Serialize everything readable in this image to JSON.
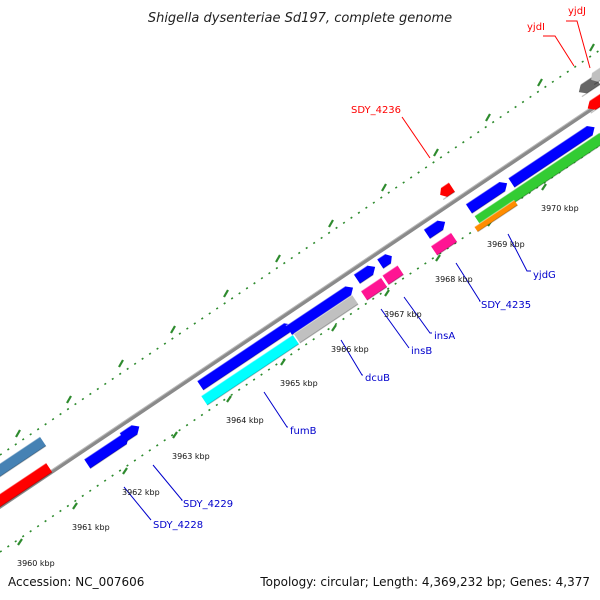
{
  "title": "Shigella dysenteriae Sd197, complete genome",
  "footer": {
    "accession": "Accession: NC_007606",
    "topology": "Topology: circular; Length: 4,369,232 bp; Genes: 4,377"
  },
  "colors": {
    "backbone": "#888888",
    "tick_mark": "#2e8b2e",
    "label_red": "#ff0000",
    "label_blue": "#0000cc",
    "gene_blue": "#0000ff",
    "gene_red": "#ff0000",
    "gene_pink": "#ff1493",
    "gene_cyan": "#00ffff",
    "gene_gray": "#c0c0c0",
    "gene_darkgray": "#666666",
    "gene_green": "#33cc33",
    "gene_orange": "#ff8c00",
    "gene_steel": "#4682b4"
  },
  "ticks": [
    {
      "label": "3960 kbp"
    },
    {
      "label": "3961 kbp"
    },
    {
      "label": "3962 kbp"
    },
    {
      "label": "3963 kbp"
    },
    {
      "label": "3964 kbp"
    },
    {
      "label": "3965 kbp"
    },
    {
      "label": "3966 kbp"
    },
    {
      "label": "3967 kbp"
    },
    {
      "label": "3968 kbp"
    },
    {
      "label": "3969 kbp"
    },
    {
      "label": "3970 kbp"
    }
  ],
  "gene_labels": [
    {
      "name": "yjdJ",
      "color": "red"
    },
    {
      "name": "yjdI",
      "color": "red"
    },
    {
      "name": "SDY_4236",
      "color": "red"
    },
    {
      "name": "yjdG",
      "color": "blue"
    },
    {
      "name": "SDY_4235",
      "color": "blue"
    },
    {
      "name": "insA",
      "color": "blue"
    },
    {
      "name": "insB",
      "color": "blue"
    },
    {
      "name": "dcuB",
      "color": "blue"
    },
    {
      "name": "fumB",
      "color": "blue"
    },
    {
      "name": "SDY_4229",
      "color": "blue"
    },
    {
      "name": "SDY_4228",
      "color": "blue"
    }
  ]
}
